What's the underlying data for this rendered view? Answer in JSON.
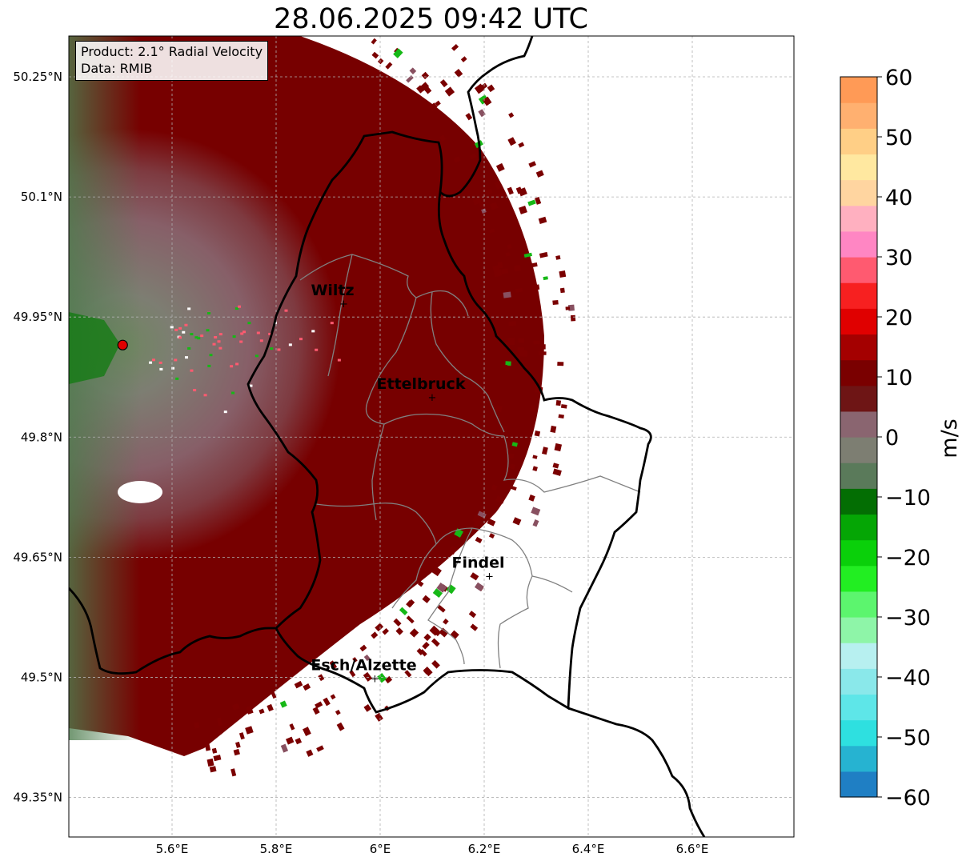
{
  "title": "28.06.2025 09:42 UTC",
  "info": {
    "product": "Product: 2.1° Radial Velocity",
    "data_source": "Data: RMIB"
  },
  "axes": {
    "lon_ticks": [
      "5.6°E",
      "5.8°E",
      "6°E",
      "6.2°E",
      "6.4°E",
      "6.6°E"
    ],
    "lat_ticks": [
      "50.25°N",
      "50.1°N",
      "49.95°N",
      "49.8°N",
      "49.65°N",
      "49.5°N",
      "49.35°N"
    ],
    "lon_values": [
      5.6,
      5.8,
      6.0,
      6.2,
      6.4,
      6.6
    ],
    "lat_values": [
      50.25,
      50.1,
      49.95,
      49.8,
      49.65,
      49.5,
      49.35
    ]
  },
  "places": [
    {
      "name": "Wiltz",
      "lon": 5.93,
      "lat": 49.967
    },
    {
      "name": "Ettelbruck",
      "lon": 6.1,
      "lat": 49.85
    },
    {
      "name": "Findel",
      "lon": 6.21,
      "lat": 49.627
    },
    {
      "name": "Esch/Alzette",
      "lon": 5.99,
      "lat": 49.499
    }
  ],
  "radar_site": {
    "lon": 5.505,
    "lat": 49.915
  },
  "colorbar": {
    "label": "m/s",
    "ticks": [
      "60",
      "50",
      "40",
      "30",
      "20",
      "10",
      "0",
      "−10",
      "−20",
      "−30",
      "−40",
      "−50",
      "−60"
    ],
    "min": -60,
    "max": 60,
    "colors": [
      "#1f7fc4",
      "#26b3d1",
      "#2ee0e0",
      "#5ee6e8",
      "#8ae8ea",
      "#b7f0f0",
      "#8ef5a8",
      "#5cf56e",
      "#22ee22",
      "#0ad00a",
      "#05a605",
      "#036e03",
      "#5a7a5a",
      "#7d7e72",
      "#8a6570",
      "#6e1515",
      "#7a0000",
      "#a40000",
      "#e00000",
      "#f72020",
      "#ff5a70",
      "#ff86c3",
      "#ffb0c0",
      "#ffd5a0",
      "#ffe8a0",
      "#ffcf86",
      "#ffb070",
      "#ff9a56"
    ]
  }
}
